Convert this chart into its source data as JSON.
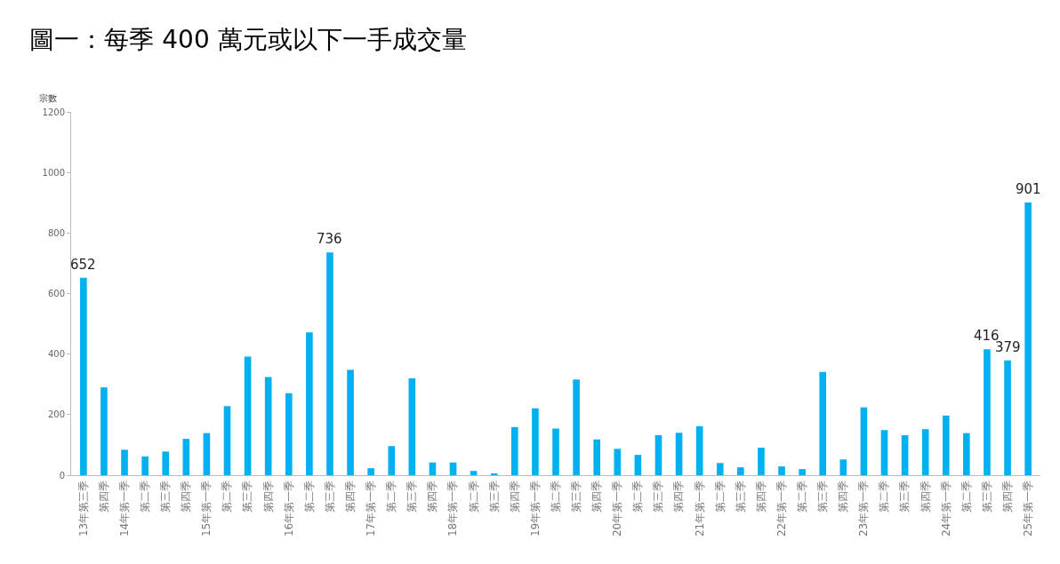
{
  "chart_data": {
    "type": "bar",
    "title": "圖一：每季 400 萬元或以下一手成交量",
    "ylabel": "宗數",
    "categories": [
      "13年第三季",
      "第四季",
      "14年第一季",
      "第二季",
      "第三季",
      "第四季",
      "15年第一季",
      "第二季",
      "第三季",
      "第四季",
      "16年第一季",
      "第二季",
      "第三季",
      "第四季",
      "17年第一季",
      "第二季",
      "第三季",
      "第四季",
      "18年第一季",
      "第二季",
      "第三季",
      "第四季",
      "19年第一季",
      "第二季",
      "第三季",
      "第四季",
      "20年第一季",
      "第二季",
      "第三季",
      "第四季",
      "21年第一季",
      "第二季",
      "第三季",
      "第四季",
      "22年第一季",
      "第二季",
      "第三季",
      "第四季",
      "23年第一季",
      "第二季",
      "第三季",
      "第四季",
      "24年第一季",
      "第二季",
      "第三季",
      "第四季",
      "25年第一季"
    ],
    "values": [
      652,
      290,
      84,
      62,
      78,
      120,
      139,
      228,
      392,
      324,
      271,
      472,
      736,
      348,
      23,
      96,
      320,
      42,
      42,
      14,
      6,
      159,
      221,
      154,
      316,
      118,
      87,
      67,
      132,
      140,
      162,
      40,
      26,
      91,
      29,
      20,
      341,
      52,
      224,
      149,
      132,
      152,
      197,
      139,
      416,
      379,
      901
    ],
    "value_labels": [
      "652",
      null,
      null,
      null,
      null,
      null,
      null,
      null,
      null,
      null,
      null,
      null,
      "736",
      null,
      null,
      null,
      null,
      null,
      null,
      null,
      null,
      null,
      null,
      null,
      null,
      null,
      null,
      null,
      null,
      null,
      null,
      null,
      null,
      null,
      null,
      null,
      null,
      null,
      null,
      null,
      null,
      null,
      null,
      null,
      "416",
      "379",
      "901"
    ],
    "color": "#00b0f0",
    "ylim": [
      0,
      1200
    ],
    "yticks": [
      0,
      200,
      400,
      600,
      800,
      1000,
      1200
    ],
    "grid": false,
    "legend": false
  }
}
